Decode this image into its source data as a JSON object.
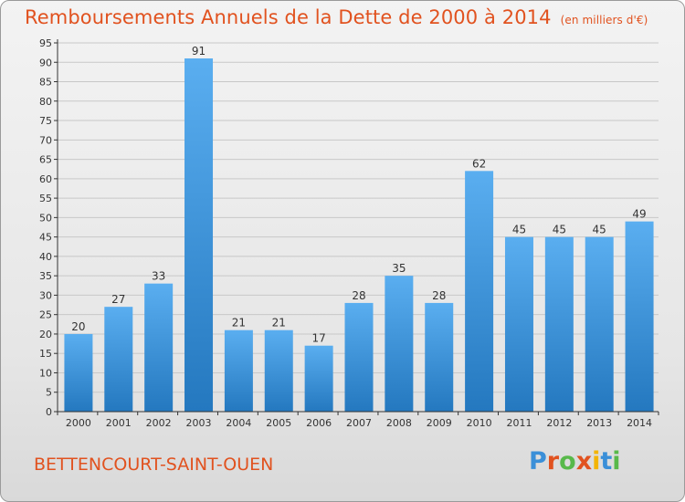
{
  "title": {
    "main": "Remboursements Annuels de la Dette de 2000 à 2014",
    "unit": "(en milliers d'€)"
  },
  "commune": "BETTENCOURT-SAINT-OUEN",
  "brand": {
    "text": "Proxiti",
    "colors": [
      "#3a8fd8",
      "#e1521f",
      "#58b94a",
      "#e1521f",
      "#f3b400",
      "#3a8fd8",
      "#58b94a"
    ]
  },
  "colors": {
    "title": "#e1521f",
    "bar_light": "#5aaef0",
    "bar_dark": "#2478bf",
    "grid": "#c8c8c8",
    "axis": "#333333"
  },
  "chart_data": {
    "type": "bar",
    "categories": [
      "2000",
      "2001",
      "2002",
      "2003",
      "2004",
      "2005",
      "2006",
      "2007",
      "2008",
      "2009",
      "2010",
      "2011",
      "2012",
      "2013",
      "2014"
    ],
    "values": [
      20,
      27,
      33,
      91,
      21,
      21,
      17,
      28,
      35,
      28,
      62,
      45,
      45,
      45,
      49
    ],
    "ylim": [
      0,
      95
    ],
    "yticks": [
      0,
      5,
      10,
      15,
      20,
      25,
      30,
      35,
      40,
      45,
      50,
      55,
      60,
      65,
      70,
      75,
      80,
      85,
      90,
      95
    ],
    "grid": true,
    "data_labels": true
  }
}
